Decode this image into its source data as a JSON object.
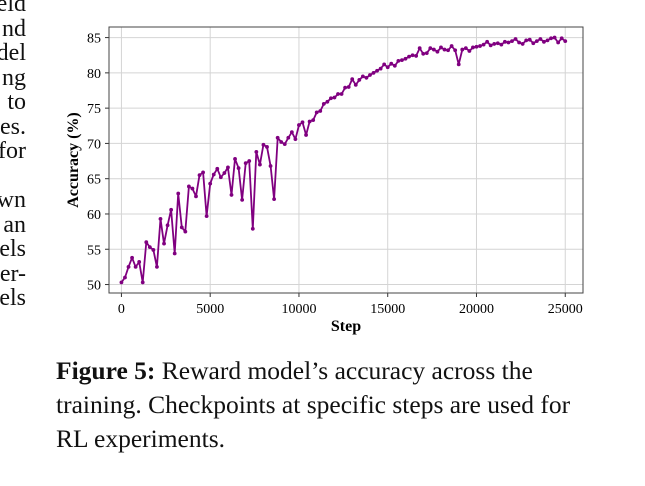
{
  "left_column_fragments": [
    "eld",
    "nd",
    "del",
    "ng",
    "to",
    "es.",
    "for",
    "",
    "wn",
    "an",
    "els",
    "er-",
    "els"
  ],
  "caption": {
    "label": "Figure 5:",
    "text": "Reward model’s accuracy across the training. Checkpoints at specific steps are used for RL experiments."
  },
  "chart_data": {
    "type": "line",
    "title": "",
    "xlabel": "Step",
    "ylabel": "Accuracy (%)",
    "xlim": [
      -700,
      26000
    ],
    "ylim": [
      48.8,
      86.5
    ],
    "xticks": [
      0,
      5000,
      10000,
      15000,
      20000,
      25000
    ],
    "yticks": [
      50,
      55,
      60,
      65,
      70,
      75,
      80,
      85
    ],
    "grid": true,
    "color": "#800080",
    "series": [
      {
        "name": "",
        "x": [
          0,
          200,
          400,
          600,
          800,
          1000,
          1200,
          1400,
          1600,
          1800,
          2000,
          2200,
          2400,
          2600,
          2800,
          3000,
          3200,
          3400,
          3600,
          3800,
          4000,
          4200,
          4400,
          4600,
          4800,
          5000,
          5200,
          5400,
          5600,
          5800,
          6000,
          6200,
          6400,
          6600,
          6800,
          7000,
          7200,
          7400,
          7600,
          7800,
          8000,
          8200,
          8400,
          8600,
          8800,
          9000,
          9200,
          9400,
          9600,
          9800,
          10000,
          10200,
          10400,
          10600,
          10800,
          11000,
          11200,
          11400,
          11600,
          11800,
          12000,
          12200,
          12400,
          12600,
          12800,
          13000,
          13200,
          13400,
          13600,
          13800,
          14000,
          14200,
          14400,
          14600,
          14800,
          15000,
          15200,
          15400,
          15600,
          15800,
          16000,
          16200,
          16400,
          16600,
          16800,
          17000,
          17200,
          17400,
          17600,
          17800,
          18000,
          18200,
          18400,
          18600,
          18800,
          19000,
          19200,
          19400,
          19600,
          19800,
          20000,
          20200,
          20400,
          20600,
          20800,
          21000,
          21200,
          21400,
          21600,
          21800,
          22000,
          22200,
          22400,
          22600,
          22800,
          23000,
          23200,
          23400,
          23600,
          23800,
          24000,
          24200,
          24400,
          24600,
          24800,
          25000
        ],
        "values": [
          50.3,
          51.0,
          52.5,
          53.8,
          52.5,
          53.2,
          50.3,
          56.0,
          55.3,
          54.9,
          52.5,
          59.3,
          55.8,
          58.4,
          60.6,
          54.4,
          62.9,
          58.1,
          57.5,
          63.9,
          63.6,
          62.5,
          65.5,
          65.9,
          59.7,
          64.3,
          65.6,
          66.4,
          65.2,
          65.8,
          66.6,
          62.7,
          67.8,
          66.5,
          62.0,
          67.2,
          67.5,
          57.9,
          68.8,
          67.0,
          69.8,
          69.5,
          66.8,
          62.1,
          70.8,
          70.2,
          69.9,
          70.8,
          71.6,
          70.6,
          72.6,
          73.0,
          71.2,
          73.1,
          73.3,
          74.4,
          74.6,
          75.6,
          75.9,
          76.4,
          76.5,
          77.0,
          77.0,
          77.9,
          78.0,
          79.1,
          78.3,
          79.0,
          79.5,
          79.3,
          79.7,
          80.0,
          80.3,
          80.6,
          81.2,
          80.8,
          81.3,
          81.0,
          81.7,
          81.8,
          82.0,
          82.3,
          82.5,
          82.4,
          83.5,
          82.7,
          82.8,
          83.5,
          83.3,
          83.0,
          83.6,
          83.3,
          83.2,
          83.8,
          83.2,
          81.2,
          83.3,
          83.5,
          83.1,
          83.6,
          83.7,
          83.8,
          84.0,
          84.4,
          83.9,
          84.1,
          84.2,
          84.0,
          84.4,
          84.3,
          84.5,
          84.8,
          84.3,
          84.1,
          84.6,
          84.7,
          84.2,
          84.5,
          84.8,
          84.4,
          84.6,
          84.9,
          85.0,
          84.3,
          84.9,
          84.5
        ]
      }
    ]
  }
}
